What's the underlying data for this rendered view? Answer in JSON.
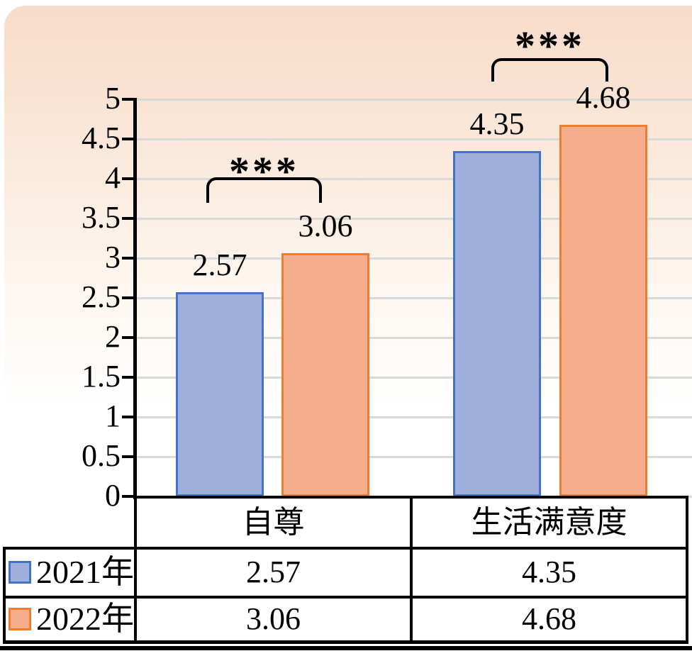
{
  "chart_data": {
    "type": "bar",
    "title": "",
    "xlabel": "",
    "ylabel": "",
    "categories": [
      "自尊",
      "生活满意度"
    ],
    "series": [
      {
        "name": "2021年",
        "values": [
          2.57,
          4.35
        ],
        "labels": [
          "2.57",
          "4.35"
        ],
        "fill": "#9eb0db",
        "border": "#4472c4"
      },
      {
        "name": "2022年",
        "values": [
          3.06,
          4.68
        ],
        "labels": [
          "3.06",
          "4.68"
        ],
        "fill": "#f5ad8b",
        "border": "#ed7d31"
      }
    ],
    "ylim": [
      0,
      5
    ],
    "ytick_step": 0.5,
    "yticks": [
      "5",
      "4.5",
      "4",
      "3.5",
      "3",
      "2.5",
      "2",
      "1.5",
      "1",
      "0.5",
      "0"
    ],
    "grid": true,
    "gridline_color": "#d9d9d9",
    "significance": [
      {
        "pair": "自尊",
        "label": "***"
      },
      {
        "pair": "生活满意度",
        "label": "***"
      }
    ],
    "legend_position": "table-left"
  },
  "table": {
    "col_headers": [
      "自尊",
      "生活满意度"
    ],
    "rows": [
      {
        "legend": "2021年",
        "swatch_fill": "#9eb0db",
        "swatch_border": "#4472c4",
        "values": [
          "2.57",
          "4.35"
        ]
      },
      {
        "legend": "2022年",
        "swatch_fill": "#f5ad8b",
        "swatch_border": "#ed7d31",
        "values": [
          "3.06",
          "4.68"
        ]
      }
    ]
  }
}
